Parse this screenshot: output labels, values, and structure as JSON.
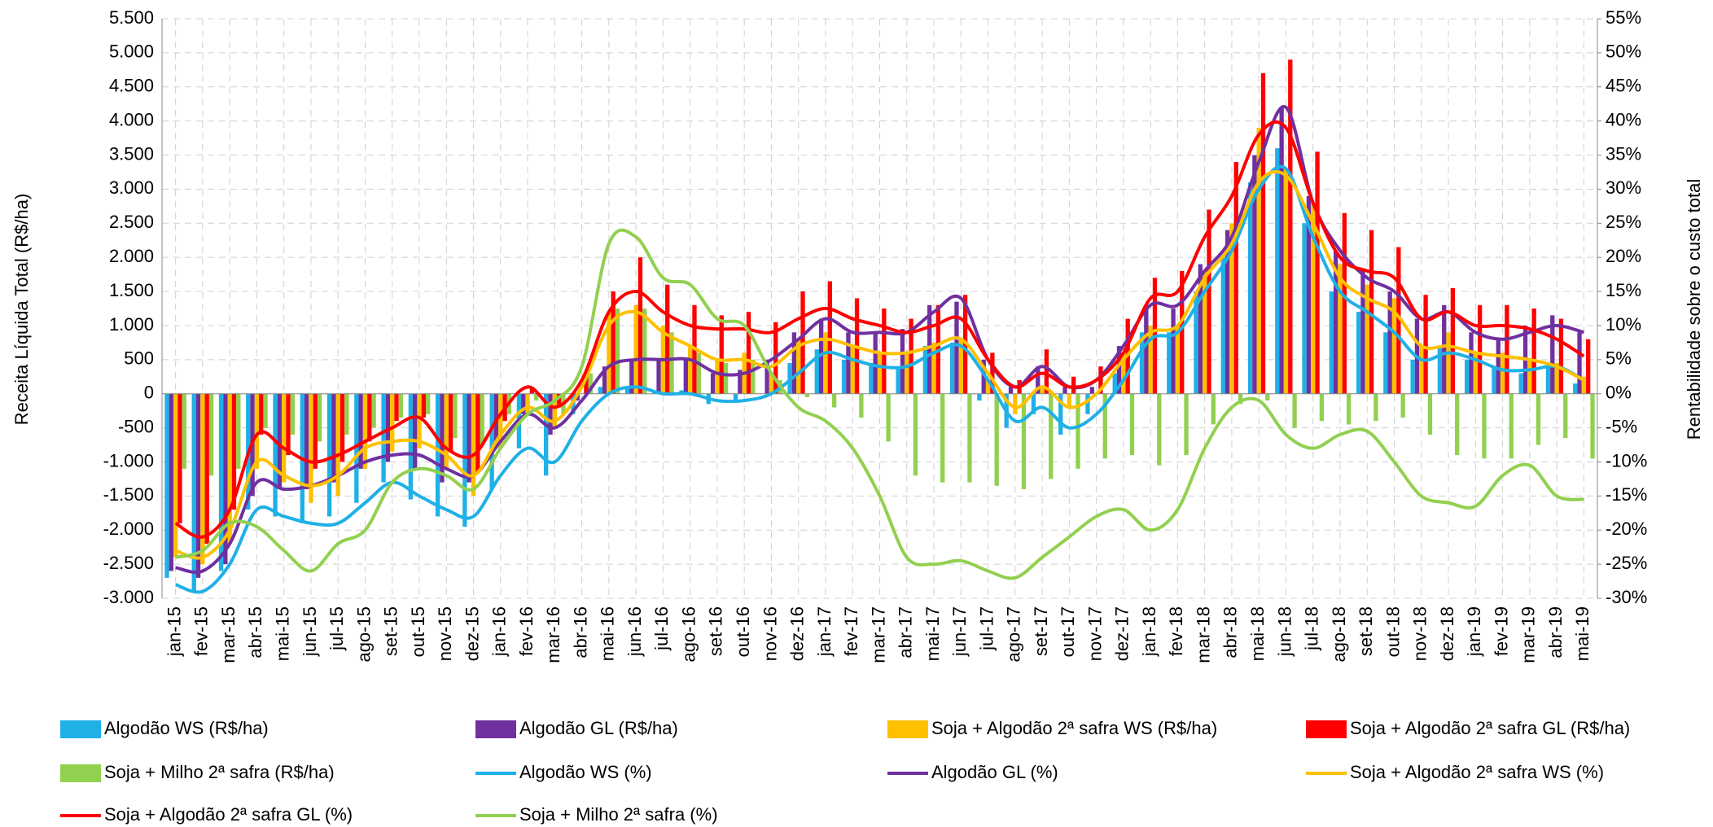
{
  "chart_data": {
    "type": "bar",
    "y_label": "Receita Líquida Total  (R$/ha)",
    "y2_label": "Rentabilidade sobre o custo total",
    "categories": [
      "jan-15",
      "fev-15",
      "mar-15",
      "abr-15",
      "mai-15",
      "jun-15",
      "jul-15",
      "ago-15",
      "set-15",
      "out-15",
      "nov-15",
      "dez-15",
      "jan-16",
      "fev-16",
      "mar-16",
      "abr-16",
      "mai-16",
      "jun-16",
      "jul-16",
      "ago-16",
      "set-16",
      "out-16",
      "nov-16",
      "dez-16",
      "jan-17",
      "fev-17",
      "mar-17",
      "abr-17",
      "mai-17",
      "jun-17",
      "jul-17",
      "ago-17",
      "set-17",
      "out-17",
      "nov-17",
      "dez-17",
      "jan-18",
      "fev-18",
      "mar-18",
      "abr-18",
      "mai-18",
      "jun-18",
      "jul-18",
      "ago-18",
      "set-18",
      "out-18",
      "nov-18",
      "dez-18",
      "jan-19",
      "fev-19",
      "mar-19",
      "abr-19",
      "mai-19"
    ],
    "ylim": [
      -3000,
      5500
    ],
    "yticks": [
      {
        "value": -3000,
        "label": "-3.000"
      },
      {
        "value": -2500,
        "label": "-2.500"
      },
      {
        "value": -2000,
        "label": "-2.000"
      },
      {
        "value": -1500,
        "label": "-1.500"
      },
      {
        "value": -1000,
        "label": "-1.000"
      },
      -500,
      0,
      500,
      {
        "value": 1000,
        "label": "1.000"
      },
      {
        "value": 1500,
        "label": "1.500"
      },
      {
        "value": 2000,
        "label": "2.000"
      },
      {
        "value": 2500,
        "label": "2.500"
      },
      {
        "value": 3000,
        "label": "3.000"
      },
      {
        "value": 3500,
        "label": "3.500"
      },
      {
        "value": 4000,
        "label": "4.000"
      },
      {
        "value": 4500,
        "label": "4.500"
      },
      {
        "value": 5000,
        "label": "5.000"
      },
      {
        "value": 5500,
        "label": "5.500"
      }
    ],
    "y2lim": [
      -30,
      55
    ],
    "y2ticks": [
      {
        "value": -30,
        "label": "-30%"
      },
      {
        "value": -25,
        "label": "-25%"
      },
      {
        "value": -20,
        "label": "-20%"
      },
      {
        "value": -15,
        "label": "-15%"
      },
      {
        "value": -10,
        "label": "-10%"
      },
      {
        "value": -5,
        "label": "-5%"
      },
      {
        "value": 0,
        "label": "0%"
      },
      {
        "value": 5,
        "label": "5%"
      },
      {
        "value": 10,
        "label": "10%"
      },
      {
        "value": 15,
        "label": "15%"
      },
      {
        "value": 20,
        "label": "20%"
      },
      {
        "value": 25,
        "label": "25%"
      },
      {
        "value": 30,
        "label": "30%"
      },
      {
        "value": 35,
        "label": "35%"
      },
      {
        "value": 40,
        "label": "40%"
      },
      {
        "value": 45,
        "label": "45%"
      },
      {
        "value": 50,
        "label": "50%"
      },
      {
        "value": 55,
        "label": "55%"
      }
    ],
    "grid": true,
    "series": [
      {
        "name": "Algodão WS (R$/ha)",
        "color": "#1fb0e6",
        "type": "bar",
        "values": [
          -2700,
          -2900,
          -2600,
          -1700,
          -1800,
          -1900,
          -1800,
          -1600,
          -1300,
          -1550,
          -1800,
          -1950,
          -1400,
          -800,
          -1200,
          -300,
          100,
          100,
          50,
          50,
          -150,
          -100,
          0,
          450,
          650,
          500,
          450,
          400,
          700,
          750,
          -100,
          -500,
          -300,
          -600,
          -300,
          300,
          900,
          900,
          1500,
          2000,
          3100,
          3600,
          2500,
          1500,
          1200,
          900,
          500,
          700,
          500,
          400,
          300,
          400,
          150
        ]
      },
      {
        "name": "Algodão GL (R$/ha)",
        "color": "#7030a0",
        "type": "bar",
        "values": [
          -2600,
          -2700,
          -2500,
          -1500,
          -1400,
          -1400,
          -1300,
          -1100,
          -1000,
          -1100,
          -1300,
          -1300,
          -700,
          -300,
          -600,
          -100,
          400,
          500,
          500,
          500,
          300,
          350,
          500,
          900,
          1100,
          900,
          900,
          950,
          1300,
          1350,
          500,
          100,
          400,
          100,
          100,
          700,
          1300,
          1250,
          1900,
          2400,
          3500,
          4200,
          2900,
          2100,
          1800,
          1500,
          1100,
          1300,
          900,
          800,
          1000,
          1150,
          900
        ]
      },
      {
        "name": "Soja + Algodão 2ª safra WS (R$/ha)",
        "color": "#ffc000",
        "type": "bar",
        "values": [
          -2400,
          -2500,
          -2200,
          -1100,
          -1300,
          -1600,
          -1500,
          -1100,
          -850,
          -800,
          -1100,
          -1500,
          -800,
          -300,
          -500,
          0,
          1200,
          1300,
          1000,
          700,
          500,
          600,
          300,
          800,
          900,
          700,
          600,
          600,
          750,
          800,
          200,
          -300,
          100,
          -200,
          0,
          600,
          1000,
          1000,
          1800,
          2500,
          3900,
          3300,
          2800,
          1900,
          1600,
          1400,
          700,
          900,
          600,
          600,
          500,
          450,
          250
        ]
      },
      {
        "name": "Soja + Algodão 2ª safra GL (R$/ha)",
        "color": "#ff0000",
        "type": "bar",
        "values": [
          -1900,
          -2200,
          -1700,
          -600,
          -900,
          -1100,
          -1000,
          -700,
          -400,
          -350,
          -850,
          -1150,
          -400,
          100,
          -200,
          300,
          1500,
          2000,
          1600,
          1300,
          1150,
          1200,
          1050,
          1500,
          1650,
          1400,
          1250,
          1100,
          1300,
          1450,
          600,
          200,
          650,
          250,
          400,
          1100,
          1700,
          1800,
          2700,
          3400,
          4700,
          4900,
          3550,
          2650,
          2400,
          2150,
          1450,
          1550,
          1300,
          1300,
          1250,
          1100,
          800
        ]
      },
      {
        "name": "Soja + Milho 2ª safra (R$/ha)",
        "color": "#92d050",
        "type": "bar",
        "values": [
          -1100,
          -1200,
          -1100,
          -500,
          -600,
          -700,
          -600,
          -500,
          -350,
          -300,
          -650,
          -750,
          -300,
          -100,
          -300,
          300,
          1250,
          1250,
          900,
          600,
          450,
          500,
          200,
          -50,
          -200,
          -350,
          -700,
          -1200,
          -1300,
          -1300,
          -1350,
          -1400,
          -1250,
          -1100,
          -950,
          -900,
          -1050,
          -900,
          -450,
          -150,
          -100,
          -500,
          -400,
          -450,
          -400,
          -350,
          -600,
          -900,
          -950,
          -950,
          -750,
          -650,
          -950
        ]
      },
      {
        "name": "Algodão WS (%)",
        "color": "#1fb0e6",
        "type": "line",
        "axis": "y2",
        "values": [
          -28,
          -29,
          -25,
          -17,
          -18,
          -19,
          -19,
          -16,
          -13,
          -15,
          -17,
          -18,
          -12,
          -8,
          -10,
          -4,
          0,
          1,
          0,
          0,
          -1,
          -1,
          0,
          3,
          6,
          5,
          4,
          4,
          6,
          7,
          2,
          -4,
          -2,
          -5,
          -3,
          2,
          8,
          9,
          15,
          21,
          30,
          33,
          23,
          15,
          12,
          9,
          5,
          6,
          5,
          3.5,
          3.5,
          4,
          2
        ]
      },
      {
        "name": "Algodão GL (%)",
        "color": "#7030a0",
        "type": "line",
        "axis": "y2",
        "values": [
          -25.5,
          -26,
          -22,
          -13,
          -14,
          -13.5,
          -12,
          -10,
          -9,
          -9,
          -11,
          -12,
          -7,
          -3,
          -5,
          -1,
          4,
          5,
          5,
          5,
          3,
          3,
          5,
          8,
          11,
          9,
          9,
          9,
          12,
          14,
          5,
          1,
          4,
          1,
          2,
          7,
          13,
          13,
          18,
          23,
          34,
          42,
          28,
          21,
          17,
          15,
          11,
          12,
          9,
          8,
          9,
          10,
          9
        ]
      },
      {
        "name": "Soja + Algodão 2ª safra WS (%)",
        "color": "#ffc000",
        "type": "line",
        "axis": "y2",
        "values": [
          -23,
          -24,
          -20,
          -10,
          -12,
          -13.5,
          -12,
          -8,
          -7,
          -7,
          -9,
          -12,
          -6,
          -2,
          -4,
          1,
          10,
          12,
          9,
          7,
          5,
          5,
          4,
          7,
          8,
          7,
          6,
          6,
          7,
          8,
          3,
          -2,
          1,
          -2,
          0,
          5,
          9,
          10,
          17,
          22,
          31,
          32,
          25,
          17,
          14,
          12,
          7,
          7,
          6,
          5.5,
          5,
          4,
          2
        ]
      },
      {
        "name": "Soja + Algodão 2ª safra GL (%)",
        "color": "#ff0000",
        "type": "line",
        "axis": "y2",
        "values": [
          -19,
          -21,
          -17,
          -6,
          -8,
          -10,
          -9,
          -7,
          -5,
          -3.5,
          -8,
          -9,
          -3,
          1,
          -2,
          2,
          12,
          15,
          12,
          10,
          9.5,
          9.5,
          9,
          11,
          12.5,
          11,
          10,
          9,
          10,
          11,
          5,
          1,
          3,
          1,
          2,
          6,
          14,
          15,
          23,
          29,
          38,
          39,
          28,
          20,
          18,
          17,
          11,
          12,
          10,
          10,
          9.5,
          8,
          5.5
        ]
      },
      {
        "name": "Soja + Milho 2ª safra (%)",
        "color": "#92d050",
        "type": "line",
        "axis": "y2",
        "values": [
          -24,
          -23,
          -19,
          -19.5,
          -23,
          -26,
          -22,
          -20,
          -13,
          -11,
          -12,
          -14,
          -8,
          -3,
          -1,
          4,
          22,
          23,
          17,
          16,
          11,
          10,
          3,
          -2,
          -4,
          -8,
          -15,
          -24,
          -25,
          -24.5,
          -26,
          -27,
          -24,
          -21,
          -18,
          -17,
          -20,
          -17,
          -8,
          -2,
          -1,
          -6,
          -8,
          -6,
          -5.5,
          -10,
          -15,
          -16,
          -16.5,
          -12,
          -10.5,
          -15,
          -15.5
        ]
      }
    ]
  }
}
